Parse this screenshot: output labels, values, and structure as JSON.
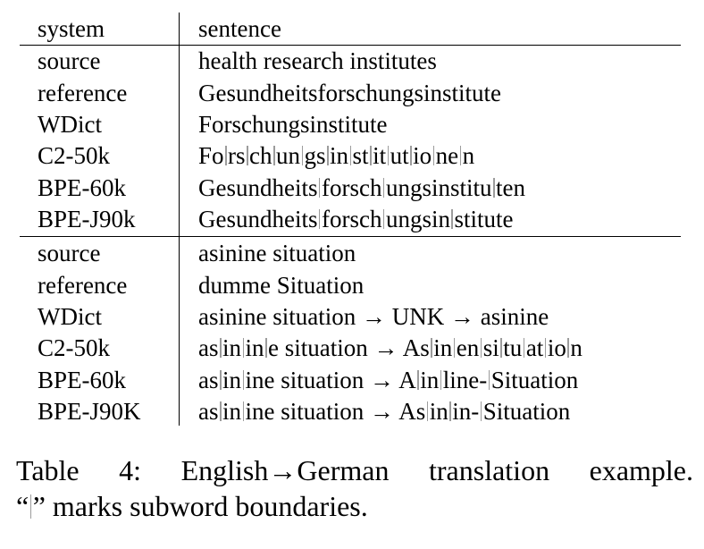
{
  "table": {
    "header": {
      "system": "system",
      "sentence": "sentence"
    },
    "groups": [
      [
        {
          "system": "source",
          "sentence": [
            "health research institutes"
          ]
        },
        {
          "system": "reference",
          "sentence": [
            "Gesundheitsforschungsinstitute"
          ]
        },
        {
          "system": "WDict",
          "sentence": [
            "Forschungsinstitute"
          ]
        },
        {
          "system": "C2-50k",
          "sentence": [
            "Fo",
            "rs",
            "ch",
            "un",
            "gs",
            "in",
            "st",
            "it",
            "ut",
            "io",
            "ne",
            "n"
          ]
        },
        {
          "system": "BPE-60k",
          "sentence": [
            "Gesundheits",
            "forsch",
            "ungsinstitu",
            "ten"
          ]
        },
        {
          "system": "BPE-J90k",
          "sentence": [
            "Gesundheits",
            "forsch",
            "ungsin",
            "stitute"
          ]
        }
      ],
      [
        {
          "system": "source",
          "sentence": [
            "asinine situation"
          ]
        },
        {
          "system": "reference",
          "sentence": [
            "dumme Situation"
          ]
        },
        {
          "system": "WDict",
          "sentence": [
            "asinine situation → UNK → asinine"
          ]
        },
        {
          "system": "C2-50k",
          "sentence": [
            "as",
            "in",
            "in",
            "e situation → As",
            "in",
            "en",
            "si",
            "tu",
            "at",
            "io",
            "n"
          ]
        },
        {
          "system": "BPE-60k",
          "sentence": [
            "as",
            "in",
            "ine situation → A",
            "in",
            "line-",
            "Situation"
          ]
        },
        {
          "system": "BPE-J90K",
          "sentence": [
            "as",
            "in",
            "ine situation → As",
            "in",
            "in-",
            "Situation"
          ]
        }
      ]
    ]
  },
  "caption": {
    "line1": [
      "Table",
      "4:",
      "English→German",
      "translation",
      "example."
    ],
    "line2_open": "“",
    "line2_rest": "” marks subword boundaries."
  },
  "colors": {
    "boundary_bar": "#9c9c9c"
  }
}
